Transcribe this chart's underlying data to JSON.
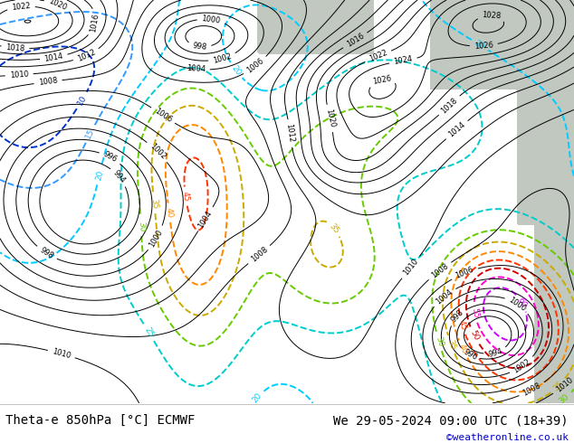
{
  "title_left": "Theta-e 850hPa [°C] ECMWF",
  "title_right": "We 29-05-2024 09:00 UTC (18+39)",
  "copyright": "©weatheronline.co.uk",
  "bg_color": "#b8e890",
  "gray_color": "#c0c8c0",
  "fig_width": 6.34,
  "fig_height": 4.9,
  "dpi": 100,
  "title_fontsize": 10,
  "copyright_fontsize": 8,
  "copyright_color": "#0000cc"
}
